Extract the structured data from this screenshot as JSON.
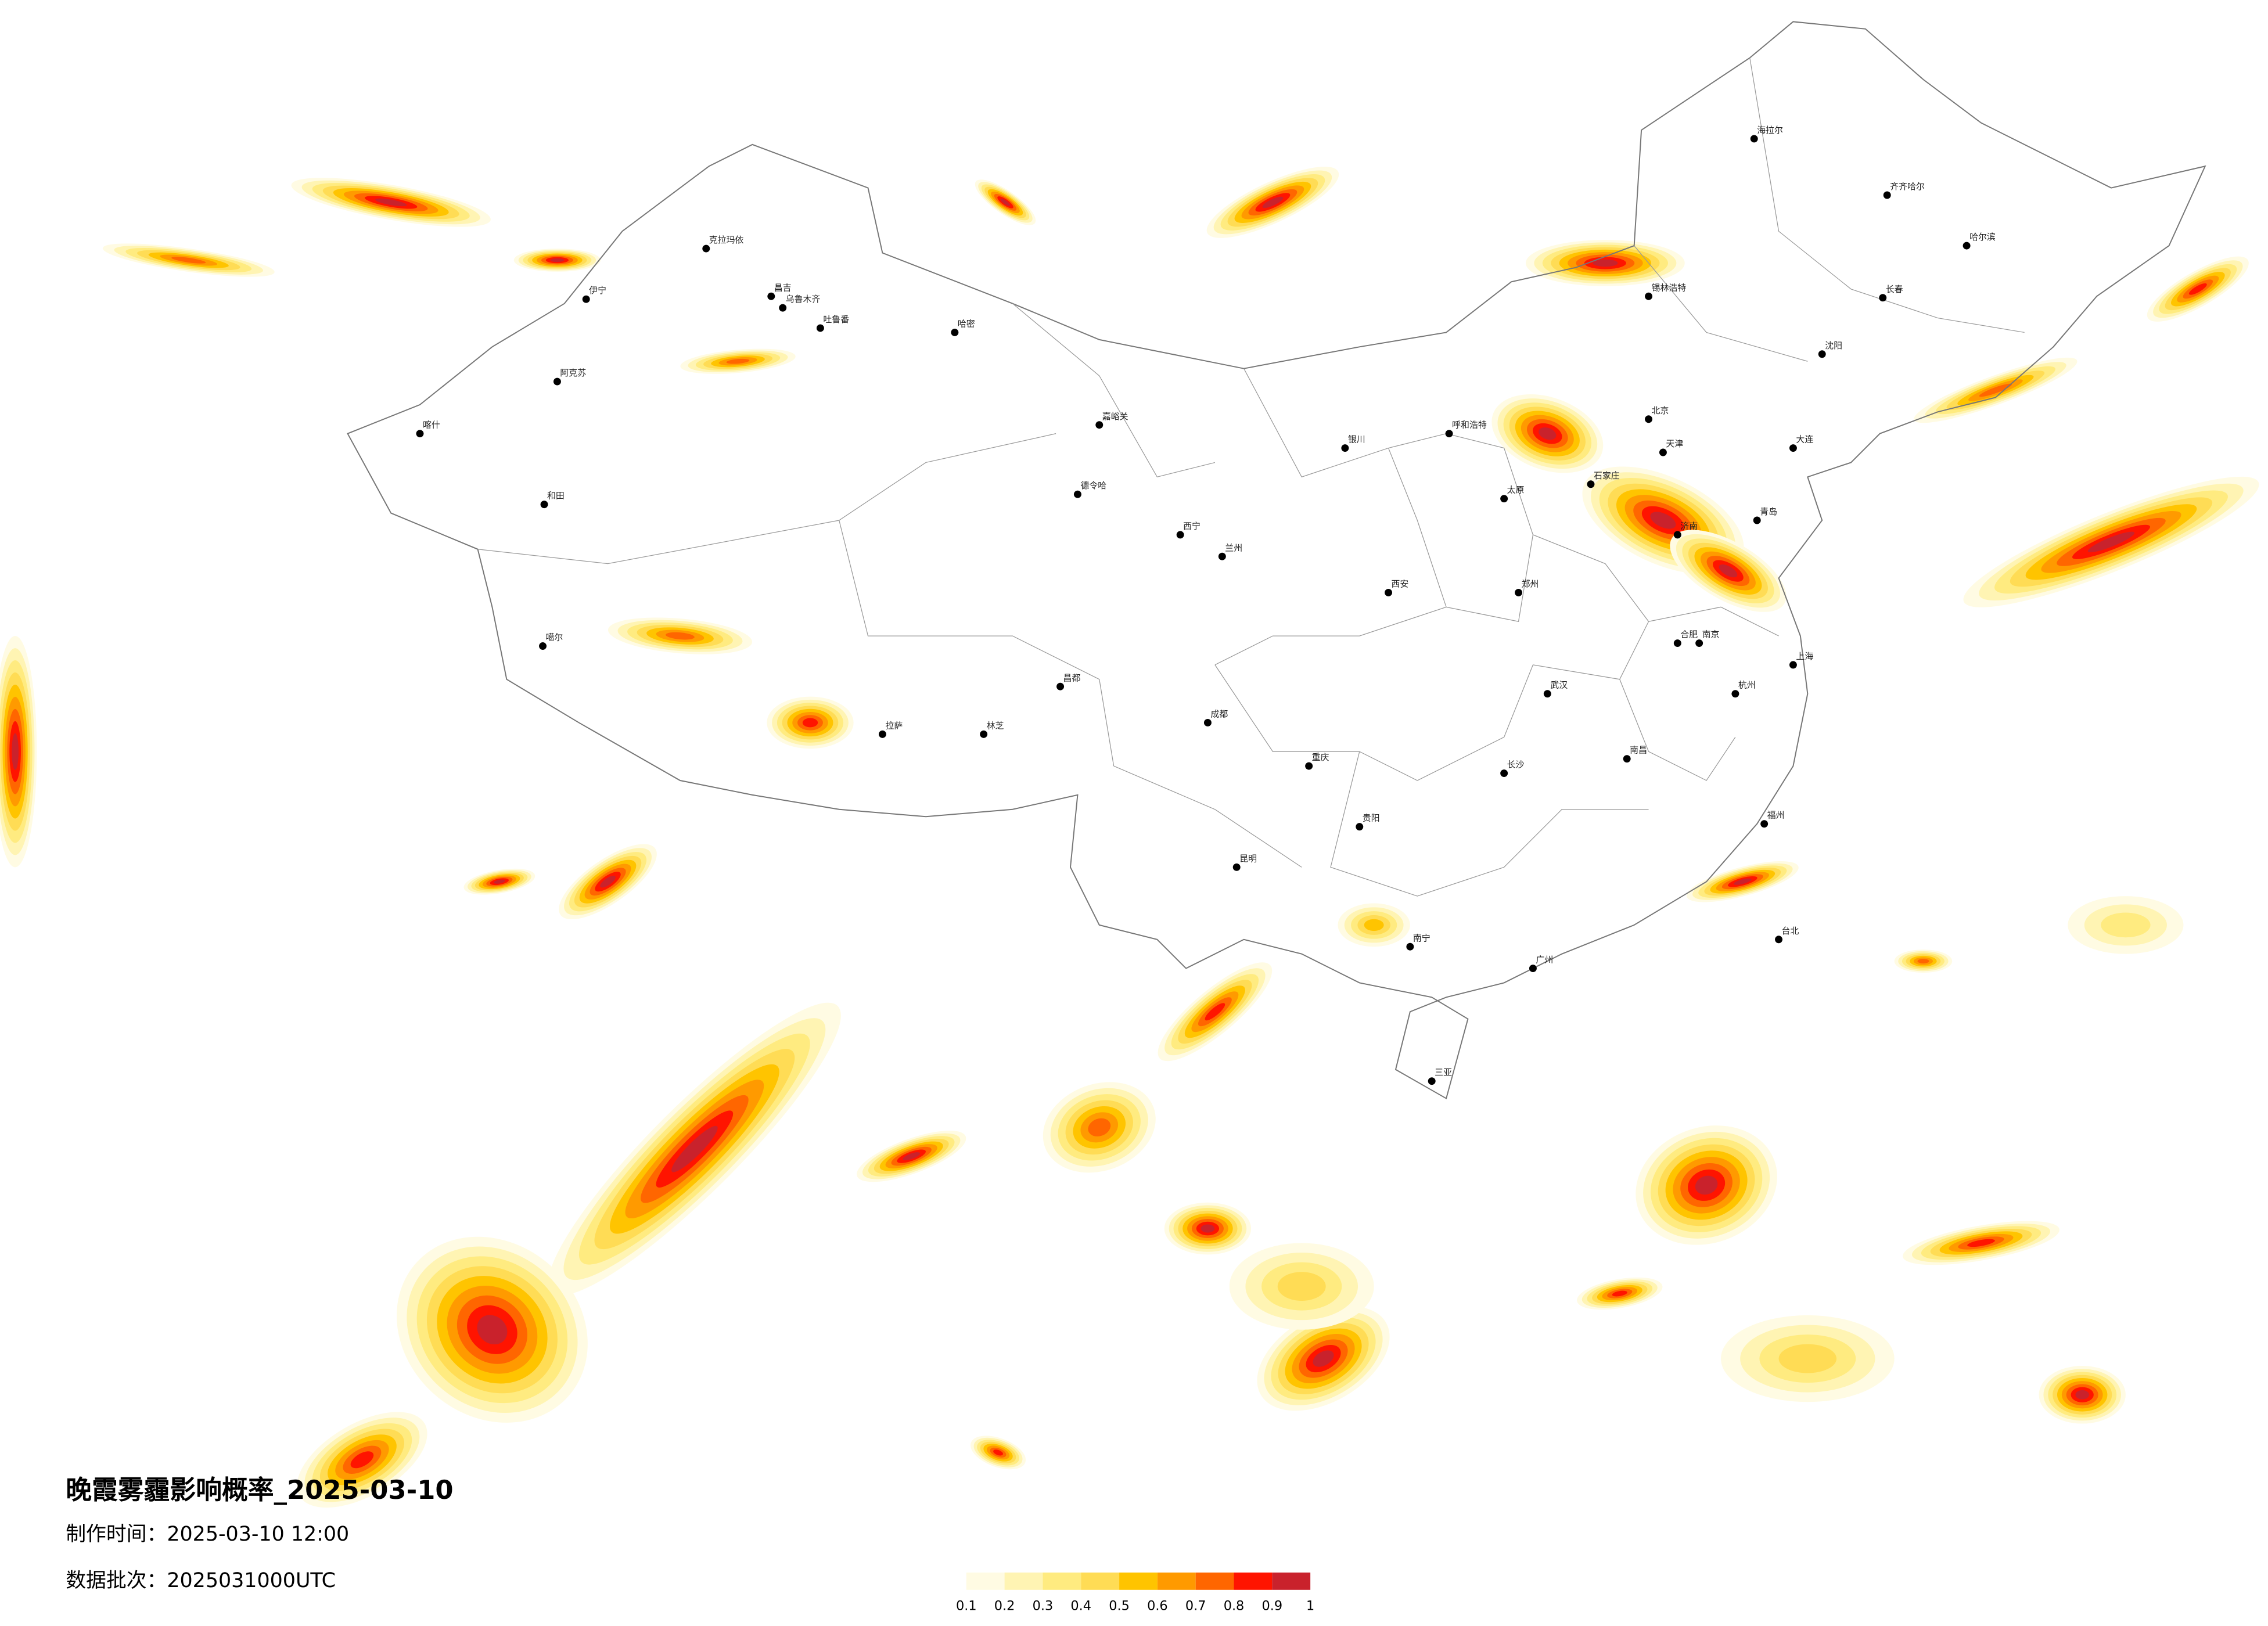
{
  "title": "晚霞雾霾影响概率_2025-03-10",
  "production_time": "制作时间：2025-03-10 12:00",
  "data_batch": "数据批次：2025031000UTC",
  "colorbar": {
    "ticks": [
      0.1,
      0.2,
      0.3,
      0.4,
      0.5,
      0.6,
      0.7,
      0.8,
      0.9,
      1
    ],
    "colors": [
      "#fffbe3",
      "#fff4b3",
      "#ffeb80",
      "#ffdc55",
      "#ffc400",
      "#ff9a00",
      "#ff6600",
      "#ff1400",
      "#c9222c"
    ]
  },
  "cities": [
    "克拉玛依",
    "伊宁",
    "昌吉",
    "乌鲁木齐",
    "吐鲁番",
    "哈密",
    "阿克苏",
    "喀什",
    "和田",
    "噶尔",
    "拉萨",
    "林芝",
    "昌都",
    "嘉峪关",
    "德令哈",
    "西宁",
    "兰州",
    "银川",
    "呼和浩特",
    "北京",
    "天津",
    "石家庄",
    "济南",
    "郑州",
    "西安",
    "成都",
    "重庆",
    "贵阳",
    "昆明",
    "南宁",
    "广州",
    "福州",
    "杭州",
    "上海",
    "南京",
    "武汉",
    "长沙",
    "南昌",
    "合肥",
    "太原",
    "沈阳",
    "长春",
    "哈尔滨",
    "海拉尔",
    "齐齐哈尔",
    "锡林浩特",
    "三亚",
    "台北",
    "大连",
    "青岛"
  ]
}
